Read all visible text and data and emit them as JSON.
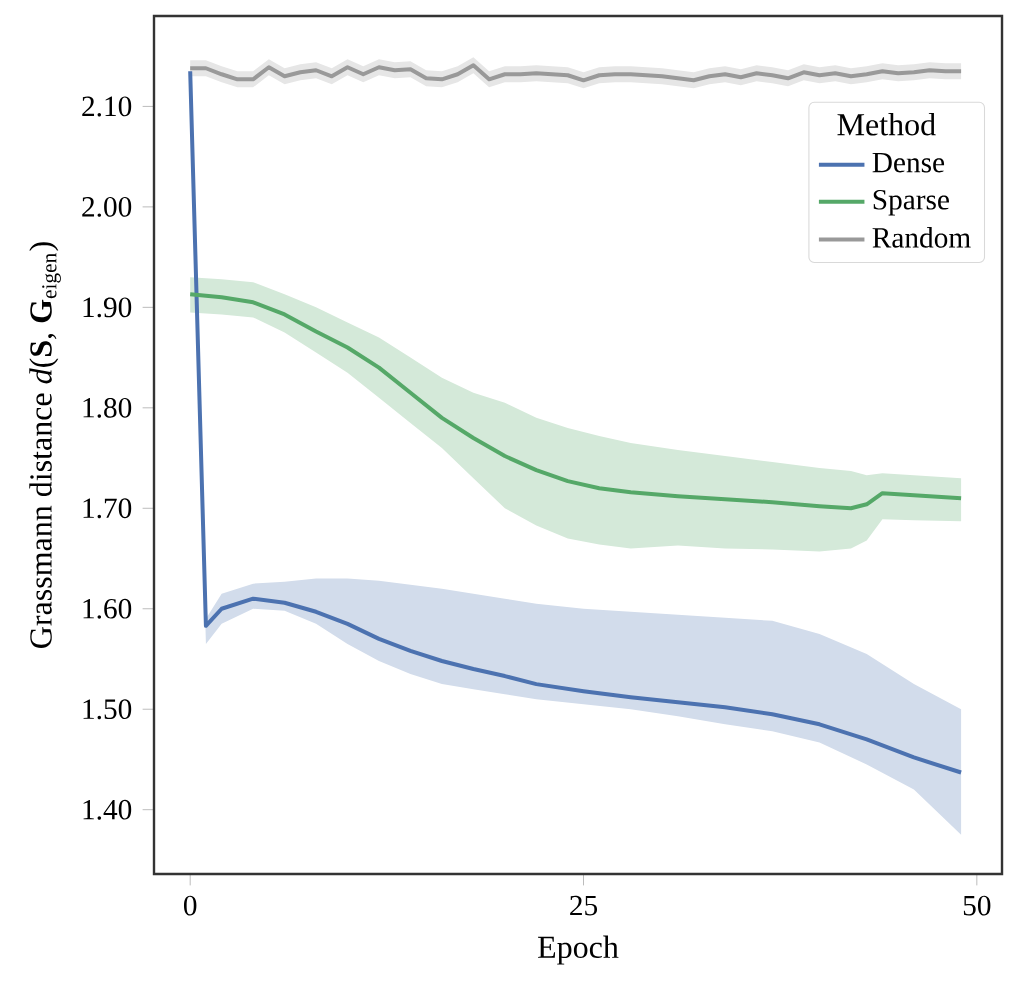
{
  "chart_data": {
    "type": "line",
    "xlabel": "Epoch",
    "ylabel": "Grassmann distance *d*(**S**, **G**$_{eigen}$)",
    "legend_title": "Method",
    "legend": "top right",
    "xlim": [
      -2.3,
      51.6
    ],
    "ylim": [
      1.336,
      2.19
    ],
    "xticks": [
      0,
      25,
      50
    ],
    "yticks": [
      {
        "value": 1.4,
        "label": "1.40"
      },
      {
        "value": 1.5,
        "label": "1.50"
      },
      {
        "value": 1.6,
        "label": "1.60"
      },
      {
        "value": 1.7,
        "label": "1.70"
      },
      {
        "value": 1.8,
        "label": "1.80"
      },
      {
        "value": 1.9,
        "label": "1.90"
      },
      {
        "value": 2.0,
        "label": "2.00"
      },
      {
        "value": 2.1,
        "label": "2.10"
      }
    ],
    "series": [
      {
        "name": "Dense",
        "color": "#4c72b0",
        "x": [
          0,
          1,
          2,
          4,
          6,
          8,
          10,
          12,
          14,
          16,
          18,
          20,
          22,
          25,
          28,
          31,
          34,
          37,
          40,
          43,
          46,
          49
        ],
        "values": [
          2.135,
          1.583,
          1.6,
          1.61,
          1.606,
          1.597,
          1.585,
          1.57,
          1.558,
          1.548,
          1.54,
          1.533,
          1.525,
          1.518,
          1.512,
          1.507,
          1.502,
          1.495,
          1.485,
          1.47,
          1.452,
          1.437
        ],
        "lower": [
          2.13,
          1.565,
          1.585,
          1.6,
          1.598,
          1.585,
          1.565,
          1.548,
          1.535,
          1.525,
          1.52,
          1.515,
          1.51,
          1.505,
          1.5,
          1.493,
          1.485,
          1.478,
          1.467,
          1.445,
          1.42,
          1.375
        ],
        "upper": [
          2.14,
          1.59,
          1.615,
          1.625,
          1.627,
          1.63,
          1.63,
          1.628,
          1.624,
          1.62,
          1.615,
          1.61,
          1.605,
          1.6,
          1.597,
          1.594,
          1.591,
          1.588,
          1.575,
          1.555,
          1.525,
          1.5
        ]
      },
      {
        "name": "Sparse",
        "color": "#55a868",
        "x": [
          0,
          2,
          4,
          6,
          8,
          10,
          12,
          14,
          16,
          18,
          20,
          22,
          24,
          26,
          28,
          31,
          34,
          37,
          40,
          42,
          43,
          44,
          46,
          49
        ],
        "values": [
          1.913,
          1.91,
          1.905,
          1.893,
          1.876,
          1.86,
          1.84,
          1.815,
          1.79,
          1.77,
          1.752,
          1.738,
          1.727,
          1.72,
          1.716,
          1.712,
          1.709,
          1.706,
          1.702,
          1.7,
          1.704,
          1.715,
          1.713,
          1.71
        ],
        "lower": [
          1.895,
          1.893,
          1.89,
          1.875,
          1.855,
          1.835,
          1.81,
          1.785,
          1.76,
          1.73,
          1.7,
          1.683,
          1.67,
          1.664,
          1.66,
          1.663,
          1.66,
          1.659,
          1.657,
          1.66,
          1.668,
          1.689,
          1.688,
          1.687
        ],
        "upper": [
          1.93,
          1.928,
          1.925,
          1.913,
          1.9,
          1.885,
          1.87,
          1.85,
          1.83,
          1.815,
          1.805,
          1.79,
          1.78,
          1.772,
          1.765,
          1.758,
          1.752,
          1.746,
          1.74,
          1.737,
          1.733,
          1.735,
          1.733,
          1.73
        ]
      },
      {
        "name": "Random",
        "color": "#999999",
        "x": [
          0,
          1,
          2,
          3,
          4,
          5,
          6,
          7,
          8,
          9,
          10,
          11,
          12,
          13,
          14,
          15,
          16,
          17,
          18,
          19,
          20,
          21,
          22,
          23,
          24,
          25,
          26,
          27,
          28,
          29,
          30,
          31,
          32,
          33,
          34,
          35,
          36,
          37,
          38,
          39,
          40,
          41,
          42,
          43,
          44,
          45,
          46,
          47,
          48,
          49
        ],
        "values": [
          2.138,
          2.138,
          2.132,
          2.127,
          2.127,
          2.139,
          2.13,
          2.134,
          2.136,
          2.13,
          2.139,
          2.132,
          2.139,
          2.136,
          2.137,
          2.128,
          2.127,
          2.132,
          2.141,
          2.127,
          2.132,
          2.132,
          2.133,
          2.132,
          2.131,
          2.126,
          2.131,
          2.132,
          2.132,
          2.131,
          2.13,
          2.128,
          2.126,
          2.13,
          2.132,
          2.129,
          2.133,
          2.131,
          2.128,
          2.134,
          2.131,
          2.133,
          2.13,
          2.132,
          2.135,
          2.133,
          2.134,
          2.136,
          2.135,
          2.135
        ],
        "lower": [
          2.13,
          2.13,
          2.124,
          2.119,
          2.119,
          2.131,
          2.122,
          2.126,
          2.128,
          2.122,
          2.131,
          2.124,
          2.131,
          2.128,
          2.129,
          2.12,
          2.119,
          2.124,
          2.133,
          2.119,
          2.124,
          2.124,
          2.125,
          2.124,
          2.123,
          2.118,
          2.123,
          2.124,
          2.124,
          2.123,
          2.122,
          2.12,
          2.118,
          2.122,
          2.124,
          2.121,
          2.125,
          2.123,
          2.12,
          2.126,
          2.123,
          2.125,
          2.122,
          2.124,
          2.127,
          2.125,
          2.126,
          2.128,
          2.127,
          2.127
        ],
        "upper": [
          2.146,
          2.146,
          2.14,
          2.135,
          2.135,
          2.147,
          2.138,
          2.142,
          2.144,
          2.138,
          2.147,
          2.14,
          2.147,
          2.144,
          2.145,
          2.136,
          2.135,
          2.14,
          2.149,
          2.135,
          2.14,
          2.14,
          2.141,
          2.14,
          2.139,
          2.134,
          2.139,
          2.14,
          2.14,
          2.139,
          2.138,
          2.136,
          2.134,
          2.138,
          2.14,
          2.137,
          2.141,
          2.139,
          2.136,
          2.142,
          2.139,
          2.141,
          2.138,
          2.14,
          2.143,
          2.141,
          2.142,
          2.144,
          2.143,
          2.143
        ]
      }
    ]
  }
}
